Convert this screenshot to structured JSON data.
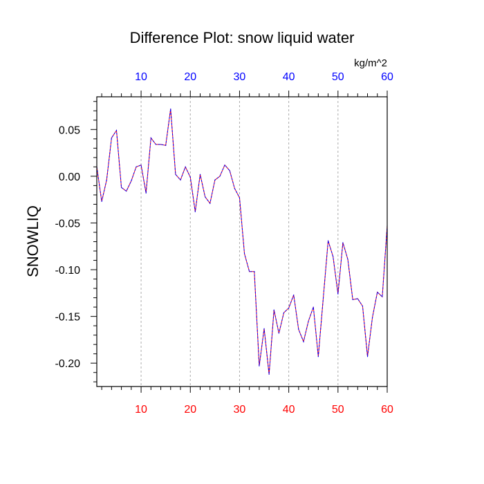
{
  "chart_data": {
    "type": "line",
    "title": "Difference Plot: snow liquid water",
    "units": "kg/m^2",
    "ylabel": "SNOWLIQ",
    "xlabel": "",
    "xlim": [
      1,
      60
    ],
    "ylim": [
      -0.225,
      0.085
    ],
    "x_ticks": [
      "10",
      "20",
      "30",
      "40",
      "50",
      "60"
    ],
    "y_ticks": [
      "0.05",
      "0.00",
      "-0.05",
      "-0.10",
      "-0.15",
      "-0.20"
    ],
    "bottom_tick_color": "#ff0000",
    "top_tick_color": "#0000ff",
    "grid": "vertical dashed",
    "series": [
      {
        "color_a": "#ff0000",
        "color_b": "#0000ff",
        "x": [
          1,
          2,
          3,
          4,
          5,
          6,
          7,
          8,
          9,
          10,
          11,
          12,
          13,
          14,
          15,
          16,
          17,
          18,
          19,
          20,
          21,
          22,
          23,
          24,
          25,
          26,
          27,
          28,
          29,
          30,
          31,
          32,
          33,
          34,
          35,
          36,
          37,
          38,
          39,
          40,
          41,
          42,
          43,
          44,
          45,
          46,
          47,
          48,
          49,
          50,
          51,
          52,
          53,
          54,
          55,
          56,
          57,
          58,
          59,
          60
        ],
        "values": [
          0.01,
          -0.027,
          -0.004,
          0.041,
          0.049,
          -0.012,
          -0.016,
          -0.005,
          0.01,
          0.012,
          -0.018,
          0.041,
          0.034,
          0.034,
          0.033,
          0.072,
          0.002,
          -0.004,
          0.01,
          -0.001,
          -0.038,
          0.002,
          -0.022,
          -0.029,
          -0.004,
          0.0,
          0.012,
          0.006,
          -0.013,
          -0.023,
          -0.083,
          -0.102,
          -0.102,
          -0.203,
          -0.163,
          -0.212,
          -0.143,
          -0.168,
          -0.146,
          -0.141,
          -0.127,
          -0.164,
          -0.177,
          -0.155,
          -0.14,
          -0.193,
          -0.131,
          -0.069,
          -0.086,
          -0.126,
          -0.071,
          -0.089,
          -0.132,
          -0.131,
          -0.139,
          -0.193,
          -0.151,
          -0.124,
          -0.129,
          -0.053
        ]
      }
    ]
  }
}
